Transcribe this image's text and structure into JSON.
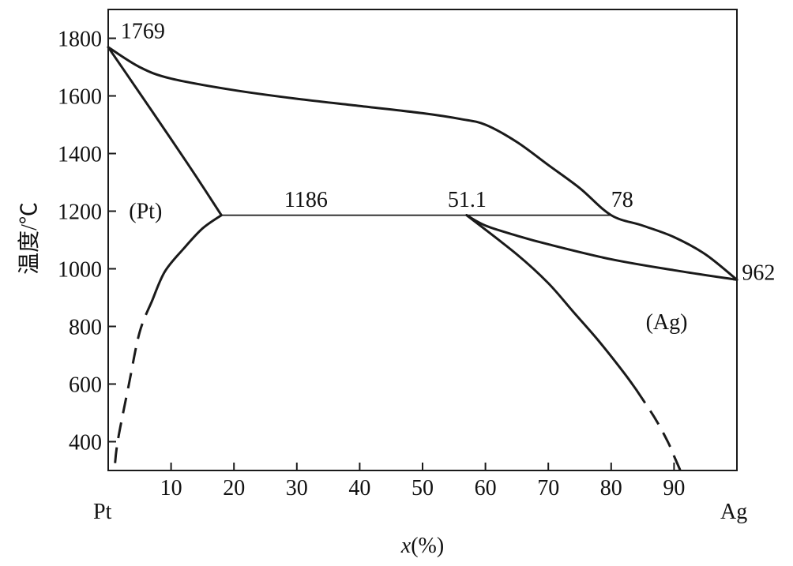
{
  "chart_data": {
    "type": "line",
    "title": "",
    "xlabel_var": "x",
    "xlabel_unit": "(%)",
    "ylabel": "温度/℃",
    "xlim": [
      0,
      100
    ],
    "ylim": [
      300,
      1900
    ],
    "x_ticks": [
      10,
      20,
      30,
      40,
      50,
      60,
      70,
      80,
      90
    ],
    "y_ticks": [
      400,
      600,
      800,
      1000,
      1200,
      1400,
      1600,
      1800
    ],
    "x_end_labels": {
      "left": "Pt",
      "right": "Ag"
    },
    "series": [
      {
        "id": "liquidus",
        "style": "solid",
        "points": [
          [
            0,
            1769
          ],
          [
            5,
            1700
          ],
          [
            10,
            1660
          ],
          [
            20,
            1620
          ],
          [
            30,
            1590
          ],
          [
            40,
            1565
          ],
          [
            50,
            1540
          ],
          [
            56,
            1520
          ],
          [
            60,
            1500
          ],
          [
            65,
            1440
          ],
          [
            70,
            1360
          ],
          [
            75,
            1280
          ],
          [
            80,
            1186
          ],
          [
            85,
            1150
          ],
          [
            90,
            1110
          ],
          [
            95,
            1050
          ],
          [
            100,
            962
          ]
        ]
      },
      {
        "id": "solidus-pt",
        "style": "solid",
        "points": [
          [
            0,
            1769
          ],
          [
            5,
            1610
          ],
          [
            10,
            1450
          ],
          [
            14,
            1320
          ],
          [
            18,
            1186
          ]
        ]
      },
      {
        "id": "solvus-pt",
        "style": "solid",
        "points": [
          [
            18,
            1186
          ],
          [
            15,
            1140
          ],
          [
            12,
            1070
          ],
          [
            9,
            990
          ],
          [
            7,
            890
          ]
        ]
      },
      {
        "id": "solvus-pt-dashed",
        "style": "dashed",
        "points": [
          [
            7,
            890
          ],
          [
            5,
            780
          ],
          [
            3.3,
            600
          ],
          [
            1.5,
            400
          ],
          [
            1,
            300
          ]
        ]
      },
      {
        "id": "solidus-ag",
        "style": "solid",
        "points": [
          [
            57,
            1186
          ],
          [
            60,
            1150
          ],
          [
            65,
            1115
          ],
          [
            70,
            1085
          ],
          [
            80,
            1033
          ],
          [
            90,
            995
          ],
          [
            100,
            962
          ]
        ]
      },
      {
        "id": "solvus-ag",
        "style": "solid",
        "points": [
          [
            57,
            1186
          ],
          [
            65,
            1050
          ],
          [
            70,
            950
          ],
          [
            74,
            850
          ],
          [
            78,
            750
          ],
          [
            82,
            640
          ],
          [
            84,
            580
          ]
        ]
      },
      {
        "id": "solvus-ag-dashed",
        "style": "dashed",
        "points": [
          [
            84,
            580
          ],
          [
            87,
            480
          ],
          [
            89,
            400
          ],
          [
            90,
            350
          ],
          [
            91,
            300
          ]
        ]
      },
      {
        "id": "peritectic",
        "style": "thin",
        "points": [
          [
            18,
            1186
          ],
          [
            80,
            1186
          ]
        ]
      }
    ],
    "annotations": [
      {
        "text": "1769",
        "x": 2,
        "y": 1800,
        "anchor": "start"
      },
      {
        "text": "1186",
        "x": 28,
        "y": 1215,
        "anchor": "start"
      },
      {
        "text": "51.1",
        "x": 54,
        "y": 1215,
        "anchor": "start"
      },
      {
        "text": "78",
        "x": 80,
        "y": 1215,
        "anchor": "start"
      },
      {
        "text": "962",
        "x": 100.8,
        "y": 962,
        "anchor": "start"
      },
      {
        "text": "(Pt)",
        "x": 3.3,
        "y": 1175,
        "anchor": "start"
      },
      {
        "text": "(Ag)",
        "x": 85.5,
        "y": 790,
        "anchor": "start"
      }
    ],
    "grid": false,
    "legend": false
  }
}
